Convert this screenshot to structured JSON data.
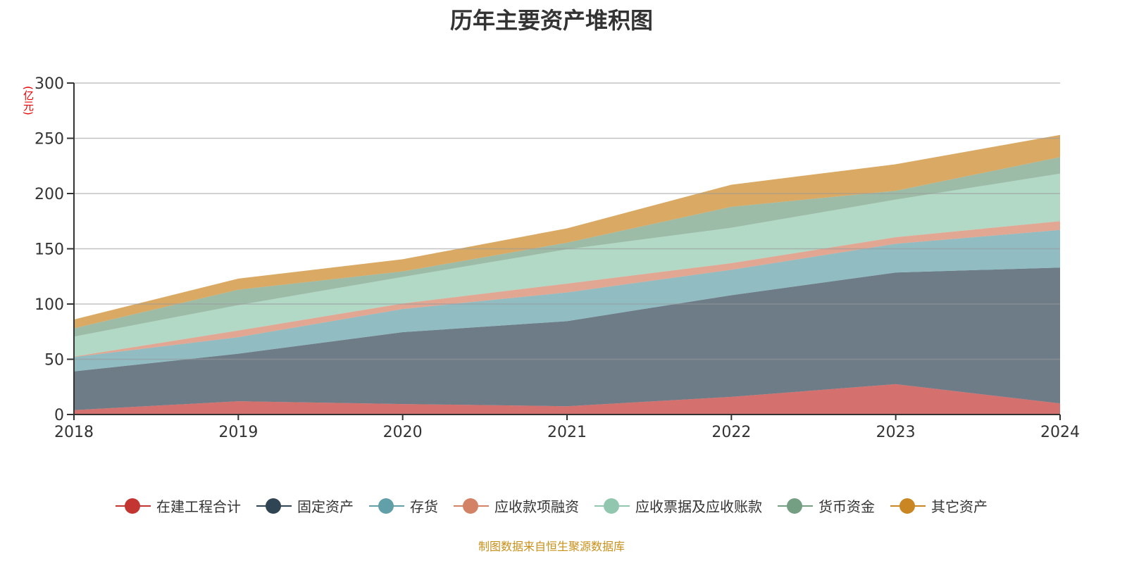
{
  "chart_data": {
    "type": "area",
    "stacked": true,
    "title": "历年主要资产堆积图",
    "ylabel": "(亿元)",
    "xlabel": "",
    "x": [
      "2018",
      "2019",
      "2020",
      "2021",
      "2022",
      "2023",
      "2024"
    ],
    "ylim": [
      0,
      300
    ],
    "yticks": [
      0,
      50,
      100,
      150,
      200,
      250,
      300
    ],
    "grid": true,
    "legend_position": "bottom",
    "series": [
      {
        "name": "在建工程合计",
        "color": "#c23531",
        "values": [
          4,
          12,
          9.5,
          7.5,
          16,
          27.5,
          10
        ]
      },
      {
        "name": "固定资产",
        "color": "#2f4554",
        "values": [
          35,
          43,
          65,
          77,
          92,
          101,
          123
        ]
      },
      {
        "name": "存货",
        "color": "#61a0a8",
        "values": [
          13,
          15,
          21,
          26,
          23,
          26,
          34
        ]
      },
      {
        "name": "应收款项融资",
        "color": "#d48265",
        "values": [
          0.5,
          6,
          5,
          8,
          6,
          6,
          8
        ]
      },
      {
        "name": "应收票据及应收账款",
        "color": "#91c7ae",
        "values": [
          18,
          23,
          24,
          31,
          32,
          34,
          43
        ]
      },
      {
        "name": "货币资金",
        "color": "#749f83",
        "values": [
          7.5,
          14,
          5,
          6,
          19,
          8,
          15
        ]
      },
      {
        "name": "其它资产",
        "color": "#ca8622",
        "values": [
          8,
          10,
          11,
          13,
          20,
          24,
          20
        ]
      }
    ]
  },
  "source": "制图数据来自恒生聚源数据库"
}
